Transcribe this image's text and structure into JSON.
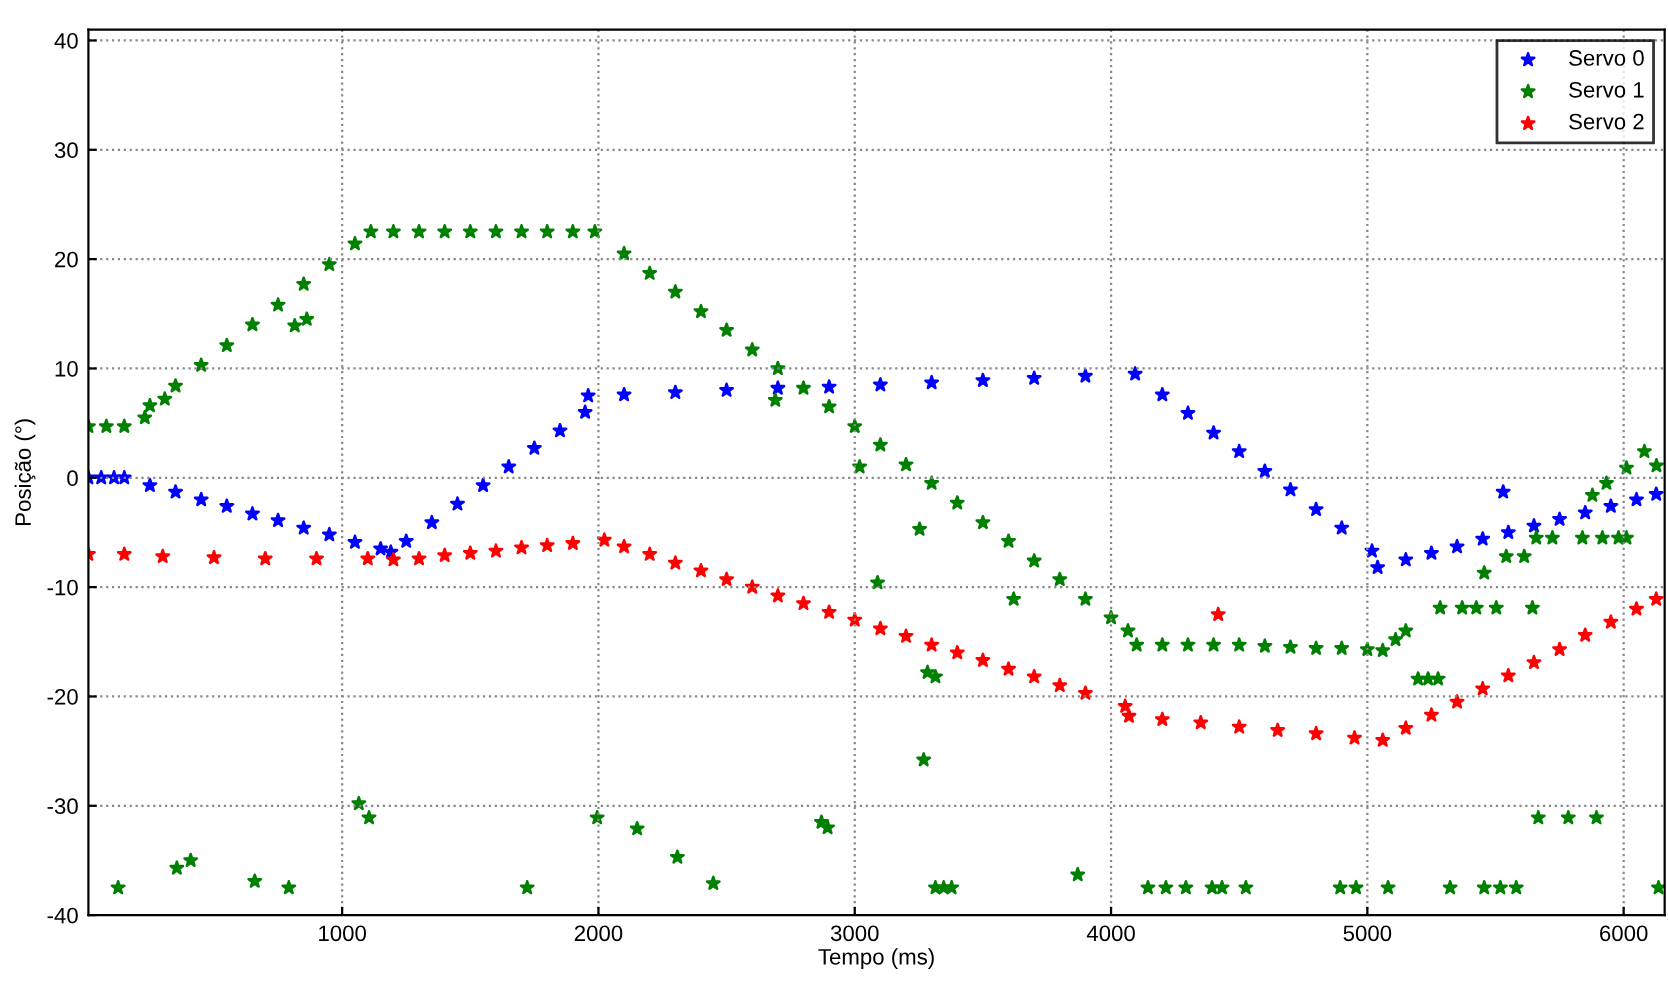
{
  "chart_data": {
    "type": "scatter",
    "xlabel": "Tempo (ms)",
    "ylabel": "Posição (°)",
    "xlim": [
      10,
      6160
    ],
    "ylim": [
      -40,
      41
    ],
    "xticks": [
      1000,
      2000,
      3000,
      4000,
      5000,
      6000
    ],
    "yticks": [
      -40,
      -30,
      -20,
      -10,
      0,
      10,
      20,
      30,
      40
    ],
    "grid": true,
    "legend": "top right",
    "marker": "star",
    "series": [
      {
        "name": "Servo 0",
        "color": "#0000ff",
        "x": [
          10,
          60,
          110,
          150,
          250,
          350,
          450,
          550,
          650,
          750,
          850,
          950,
          1050,
          1150,
          1190,
          1250,
          1350,
          1450,
          1550,
          1650,
          1750,
          1850,
          1948,
          1960,
          2100,
          2300,
          2500,
          2700,
          2900,
          3100,
          3300,
          3500,
          3700,
          3900,
          4094,
          4200,
          4300,
          4400,
          4500,
          4600,
          4700,
          4800,
          4900,
          5018,
          5040,
          5150,
          5250,
          5350,
          5450,
          5550,
          5650,
          5750,
          5850,
          5950,
          6050,
          6127,
          5530
        ],
        "values": [
          0,
          0,
          0,
          0,
          -0.7,
          -1.3,
          -2.0,
          -2.6,
          -3.3,
          -3.9,
          -4.6,
          -5.2,
          -5.9,
          -6.5,
          -6.8,
          -5.8,
          -4.1,
          -2.4,
          -0.7,
          1.0,
          2.7,
          4.3,
          6.0,
          7.5,
          7.6,
          7.8,
          8.0,
          8.2,
          8.3,
          8.5,
          8.7,
          8.9,
          9.1,
          9.3,
          9.5,
          7.6,
          5.9,
          4.1,
          2.4,
          0.6,
          -1.1,
          -2.9,
          -4.6,
          -6.7,
          -8.2,
          -7.5,
          -6.9,
          -6.3,
          -5.6,
          -5.0,
          -4.4,
          -3.8,
          -3.2,
          -2.6,
          -2.0,
          -1.5,
          -1.3
        ]
      },
      {
        "name": "Servo 1",
        "color": "#008000",
        "x": [
          10,
          80,
          150,
          250,
          350,
          450,
          550,
          650,
          750,
          850,
          950,
          1050,
          1112,
          1200,
          1300,
          1400,
          1500,
          1600,
          1700,
          1800,
          1900,
          1986,
          2100,
          2200,
          2300,
          2400,
          2500,
          2600,
          2700,
          2800,
          2900,
          3000,
          3100,
          3200,
          3300,
          3400,
          3500,
          3600,
          3700,
          3800,
          3900,
          4000,
          4066,
          4100,
          4200,
          4300,
          4400,
          4500,
          4600,
          4700,
          4800,
          4900,
          5000,
          5060,
          5110,
          5150,
          126,
          1722,
          3315,
          3347,
          3378,
          4144,
          4214,
          4292,
          4394,
          4433,
          4526,
          4894,
          4956,
          5081,
          5323,
          5456,
          5519,
          5581,
          6136,
          355,
          409,
          659,
          792,
          1065,
          1105,
          1995,
          2151,
          2308,
          2448,
          2870,
          2894,
          3269,
          3870,
          5667,
          5784,
          5894,
          3089,
          3253,
          3620,
          3019,
          815,
          862,
          230,
          308,
          2690,
          3284,
          3315,
          5198,
          5237,
          5276,
          5284,
          5370,
          5425,
          5503,
          5644,
          5456,
          5542,
          5612,
          5659,
          5722,
          5839,
          5917,
          5980,
          6011,
          5878,
          5933,
          6011,
          6081,
          6128
        ],
        "values": [
          4.7,
          4.7,
          4.7,
          6.6,
          8.4,
          10.3,
          12.1,
          14.0,
          15.8,
          17.7,
          19.5,
          21.4,
          22.5,
          22.5,
          22.5,
          22.5,
          22.5,
          22.5,
          22.5,
          22.5,
          22.5,
          22.5,
          20.5,
          18.7,
          17.0,
          15.2,
          13.5,
          11.7,
          10.0,
          8.2,
          6.5,
          4.7,
          3.0,
          1.2,
          -0.5,
          -2.3,
          -4.1,
          -5.8,
          -7.6,
          -9.3,
          -11.1,
          -12.8,
          -14.0,
          -15.3,
          -15.3,
          -15.3,
          -15.3,
          -15.3,
          -15.4,
          -15.5,
          -15.6,
          -15.6,
          -15.7,
          -15.8,
          -14.8,
          -14.0,
          -37.5,
          -37.5,
          -37.5,
          -37.5,
          -37.5,
          -37.5,
          -37.5,
          -37.5,
          -37.5,
          -37.5,
          -37.5,
          -37.5,
          -37.5,
          -37.5,
          -37.5,
          -37.5,
          -37.5,
          -37.5,
          -37.5,
          -35.7,
          -35.0,
          -36.9,
          -37.5,
          -29.8,
          -31.1,
          -31.1,
          -32.1,
          -34.7,
          -37.1,
          -31.5,
          -32.0,
          -25.8,
          -36.3,
          -31.1,
          -31.1,
          -31.1,
          -9.6,
          -4.7,
          -11.1,
          1.0,
          13.9,
          14.5,
          5.5,
          7.2,
          7.1,
          -17.8,
          -18.2,
          -18.4,
          -18.4,
          -18.4,
          -11.9,
          -11.9,
          -11.9,
          -11.9,
          -11.9,
          -8.7,
          -7.2,
          -7.2,
          -5.5,
          -5.5,
          -5.5,
          -5.5,
          -5.5,
          -5.5,
          -1.6,
          -0.5,
          0.9,
          2.4,
          1.1
        ]
      },
      {
        "name": "Servo 2",
        "color": "#ff0000",
        "x": [
          10,
          150,
          300,
          500,
          700,
          900,
          1100,
          1200,
          1300,
          1400,
          1500,
          1600,
          1700,
          1800,
          1900,
          2023,
          2100,
          2200,
          2300,
          2400,
          2500,
          2600,
          2700,
          2800,
          2900,
          3000,
          3100,
          3200,
          3300,
          3400,
          3500,
          3600,
          3700,
          3800,
          3900,
          4055,
          4070,
          4200,
          4350,
          4500,
          4650,
          4800,
          4950,
          5060,
          5150,
          5250,
          5350,
          5450,
          5550,
          5650,
          5750,
          5850,
          5950,
          6050,
          6127,
          4418
        ],
        "values": [
          -7.0,
          -7.0,
          -7.2,
          -7.3,
          -7.4,
          -7.4,
          -7.4,
          -7.5,
          -7.4,
          -7.1,
          -6.9,
          -6.7,
          -6.4,
          -6.2,
          -6.0,
          -5.7,
          -6.3,
          -7.0,
          -7.8,
          -8.5,
          -9.3,
          -10.0,
          -10.8,
          -11.5,
          -12.3,
          -13.0,
          -13.8,
          -14.5,
          -15.3,
          -16.0,
          -16.7,
          -17.5,
          -18.2,
          -19.0,
          -19.7,
          -20.9,
          -21.8,
          -22.1,
          -22.4,
          -22.8,
          -23.1,
          -23.4,
          -23.8,
          -24.0,
          -22.9,
          -21.7,
          -20.5,
          -19.3,
          -18.1,
          -16.9,
          -15.7,
          -14.4,
          -13.2,
          -12.0,
          -11.1,
          -12.5
        ]
      }
    ]
  }
}
